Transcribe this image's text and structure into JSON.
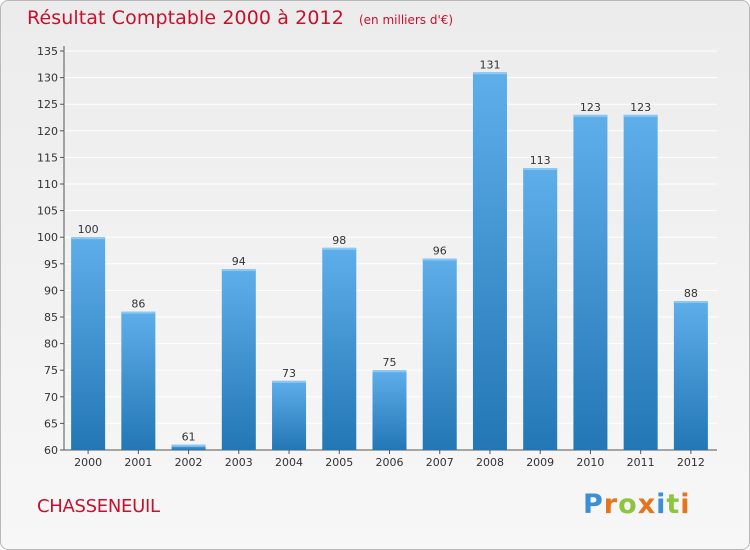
{
  "header": {
    "title": "Résultat Comptable 2000 à 2012",
    "subtitle": "(en milliers d'€)"
  },
  "footer": {
    "commune": "CHASSENEUIL",
    "logo_text": "Proxiti"
  },
  "colors": {
    "title": "#c8102e",
    "bar_top": "#5eaeea",
    "bar_bottom": "#2377b5",
    "grid": "#ffffff"
  },
  "chart_data": {
    "type": "bar",
    "categories": [
      "2000",
      "2001",
      "2002",
      "2003",
      "2004",
      "2005",
      "2006",
      "2007",
      "2008",
      "2009",
      "2010",
      "2011",
      "2012"
    ],
    "values": [
      100,
      86,
      61,
      94,
      73,
      98,
      75,
      96,
      131,
      113,
      123,
      123,
      88
    ],
    "ylim": [
      60,
      135
    ],
    "yticks": [
      60,
      65,
      70,
      75,
      80,
      85,
      90,
      95,
      100,
      105,
      110,
      115,
      120,
      125,
      130,
      135
    ],
    "grid": true,
    "data_labels": true
  }
}
